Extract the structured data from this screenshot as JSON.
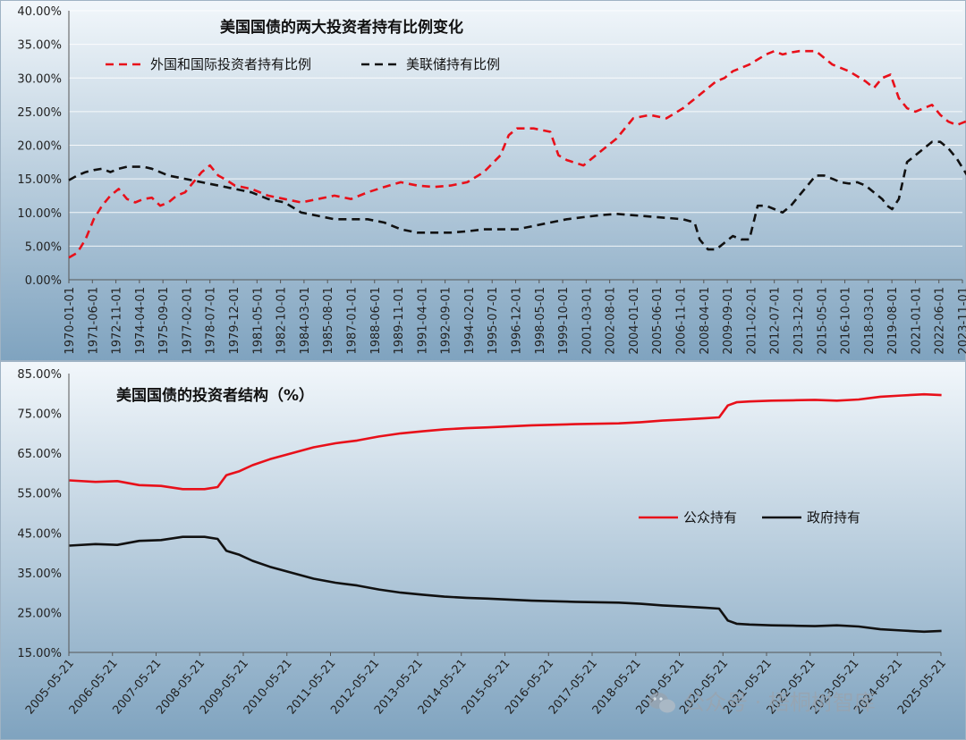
{
  "watermark": {
    "text": "公众号 · 梧桐树智库",
    "icon": "wechat-icon"
  },
  "chart_data": [
    {
      "type": "line",
      "title": "美国国债的两大投资者持有比例变化",
      "ylim": [
        0,
        0.4
      ],
      "y_ticks": [
        "0.00%",
        "5.00%",
        "10.00%",
        "15.00%",
        "20.00%",
        "25.00%",
        "30.00%",
        "35.00%",
        "40.00%"
      ],
      "x_ticks": [
        "1970-01-01",
        "1971-06-01",
        "1972-11-01",
        "1974-04-01",
        "1975-09-01",
        "1977-02-01",
        "1978-07-01",
        "1979-12-01",
        "1981-05-01",
        "1982-10-01",
        "1984-03-01",
        "1985-08-01",
        "1987-01-01",
        "1988-06-01",
        "1989-11-01",
        "1991-04-01",
        "1992-09-01",
        "1994-02-01",
        "1995-07-01",
        "1996-12-01",
        "1998-05-01",
        "1999-10-01",
        "2001-03-01",
        "2002-08-01",
        "2004-01-01",
        "2005-06-01",
        "2006-11-01",
        "2008-04-01",
        "2009-09-01",
        "2011-02-01",
        "2012-07-01",
        "2013-12-01",
        "2015-05-01",
        "2016-10-01",
        "2018-03-01",
        "2019-08-01",
        "2021-01-01",
        "2022-06-01",
        "2023-11-01"
      ],
      "grid": true,
      "legend_position": "top-left",
      "series": [
        {
          "name": "外国和国际投资者持有比例",
          "color": "#e8101a",
          "style": "dashed",
          "x": [
            1970.0,
            1970.5,
            1971.0,
            1971.5,
            1972.0,
            1972.5,
            1973.0,
            1973.5,
            1974.0,
            1974.5,
            1975.0,
            1975.5,
            1976.0,
            1976.5,
            1977.0,
            1977.5,
            1978.0,
            1978.5,
            1979.0,
            1979.5,
            1980.0,
            1981.0,
            1982.0,
            1983.0,
            1984.0,
            1985.0,
            1986.0,
            1987.0,
            1988.0,
            1989.0,
            1990.0,
            1991.0,
            1992.0,
            1993.0,
            1994.0,
            1995.0,
            1996.0,
            1996.5,
            1997.0,
            1998.0,
            1999.0,
            1999.5,
            2000.0,
            2001.0,
            2002.0,
            2003.0,
            2004.0,
            2005.0,
            2006.0,
            2007.0,
            2008.0,
            2009.0,
            2009.5,
            2010.0,
            2011.0,
            2012.0,
            2012.5,
            2013.0,
            2013.5,
            2014.0,
            2015.0,
            2015.5,
            2016.0,
            2017.0,
            2018.0,
            2018.5,
            2019.0,
            2019.5,
            2020.0,
            2020.5,
            2021.0,
            2022.0,
            2022.5,
            2023.0,
            2023.5,
            2024.0,
            2024.5
          ],
          "values": [
            0.033,
            0.04,
            0.06,
            0.09,
            0.11,
            0.125,
            0.135,
            0.12,
            0.115,
            0.12,
            0.122,
            0.11,
            0.115,
            0.125,
            0.13,
            0.145,
            0.16,
            0.17,
            0.155,
            0.148,
            0.14,
            0.135,
            0.125,
            0.12,
            0.115,
            0.12,
            0.125,
            0.12,
            0.13,
            0.138,
            0.145,
            0.14,
            0.138,
            0.14,
            0.145,
            0.16,
            0.185,
            0.215,
            0.225,
            0.225,
            0.22,
            0.185,
            0.178,
            0.17,
            0.19,
            0.21,
            0.24,
            0.245,
            0.24,
            0.255,
            0.275,
            0.295,
            0.3,
            0.31,
            0.32,
            0.335,
            0.34,
            0.335,
            0.338,
            0.34,
            0.34,
            0.33,
            0.32,
            0.31,
            0.295,
            0.285,
            0.3,
            0.305,
            0.27,
            0.255,
            0.25,
            0.26,
            0.245,
            0.235,
            0.23,
            0.235,
            0.24
          ]
        },
        {
          "name": "美联储持有比例",
          "color": "#111111",
          "style": "dashed",
          "x": [
            1970.0,
            1970.5,
            1971.0,
            1971.5,
            1972.0,
            1972.5,
            1973.0,
            1973.5,
            1974.0,
            1974.5,
            1975.0,
            1976.0,
            1977.0,
            1978.0,
            1979.0,
            1980.0,
            1981.0,
            1982.0,
            1983.0,
            1984.0,
            1985.0,
            1986.0,
            1987.0,
            1988.0,
            1989.0,
            1990.0,
            1991.0,
            1992.0,
            1993.0,
            1994.0,
            1995.0,
            1996.0,
            1997.0,
            1998.0,
            1999.0,
            2000.0,
            2001.0,
            2002.0,
            2003.0,
            2004.0,
            2005.0,
            2006.0,
            2007.0,
            2007.7,
            2008.0,
            2008.5,
            2009.0,
            2009.5,
            2010.0,
            2010.5,
            2011.0,
            2011.5,
            2012.0,
            2012.5,
            2013.0,
            2013.5,
            2014.0,
            2014.5,
            2015.0,
            2015.5,
            2016.0,
            2016.5,
            2017.0,
            2017.5,
            2018.0,
            2018.5,
            2019.0,
            2019.3,
            2019.6,
            2020.0,
            2020.5,
            2021.0,
            2021.5,
            2022.0,
            2022.5,
            2023.0,
            2023.5,
            2024.0,
            2024.5
          ],
          "values": [
            0.148,
            0.155,
            0.16,
            0.163,
            0.165,
            0.16,
            0.165,
            0.168,
            0.168,
            0.168,
            0.165,
            0.155,
            0.15,
            0.145,
            0.14,
            0.135,
            0.13,
            0.12,
            0.115,
            0.1,
            0.095,
            0.09,
            0.09,
            0.09,
            0.085,
            0.075,
            0.07,
            0.07,
            0.07,
            0.072,
            0.075,
            0.075,
            0.075,
            0.08,
            0.085,
            0.09,
            0.093,
            0.096,
            0.098,
            0.096,
            0.094,
            0.092,
            0.09,
            0.085,
            0.06,
            0.045,
            0.045,
            0.055,
            0.065,
            0.06,
            0.06,
            0.11,
            0.11,
            0.105,
            0.1,
            0.11,
            0.125,
            0.14,
            0.155,
            0.155,
            0.15,
            0.145,
            0.143,
            0.145,
            0.14,
            0.13,
            0.12,
            0.11,
            0.105,
            0.12,
            0.175,
            0.185,
            0.195,
            0.205,
            0.205,
            0.195,
            0.18,
            0.16,
            0.14
          ]
        }
      ]
    },
    {
      "type": "line",
      "title": "美国国债的投资者结构（%）",
      "ylim": [
        15,
        85
      ],
      "y_ticks": [
        "15.00%",
        "25.00%",
        "35.00%",
        "45.00%",
        "55.00%",
        "65.00%",
        "75.00%",
        "85.00%"
      ],
      "x_ticks": [
        "2005-05-21",
        "2006-05-21",
        "2007-05-21",
        "2008-05-21",
        "2009-05-21",
        "2010-05-21",
        "2011-05-21",
        "2012-05-21",
        "2013-05-21",
        "2014-05-21",
        "2015-05-21",
        "2016-05-21",
        "2017-05-21",
        "2018-05-21",
        "2019-05-21",
        "2020-05-21",
        "2021-05-21",
        "2022-05-21",
        "2023-05-21",
        "2024-05-21",
        "2025-05-21"
      ],
      "grid": false,
      "legend_position": "center-right",
      "series": [
        {
          "name": "公众持有",
          "color": "#e8101a",
          "style": "solid",
          "x": [
            2005.4,
            2006.0,
            2006.5,
            2007.0,
            2007.5,
            2008.0,
            2008.5,
            2008.8,
            2009.0,
            2009.3,
            2009.6,
            2010.0,
            2010.5,
            2011.0,
            2011.5,
            2012.0,
            2012.5,
            2013.0,
            2013.5,
            2014.0,
            2014.5,
            2015.0,
            2016.0,
            2017.0,
            2018.0,
            2018.5,
            2019.0,
            2019.5,
            2020.0,
            2020.3,
            2020.5,
            2020.7,
            2021.0,
            2021.5,
            2022.0,
            2022.5,
            2023.0,
            2023.5,
            2024.0,
            2024.5,
            2025.0,
            2025.4
          ],
          "values": [
            58.2,
            57.8,
            58.0,
            57.0,
            56.8,
            56.0,
            56.0,
            56.5,
            59.5,
            60.5,
            62.0,
            63.5,
            65.0,
            66.5,
            67.5,
            68.2,
            69.2,
            70.0,
            70.5,
            71.0,
            71.3,
            71.5,
            72.0,
            72.3,
            72.5,
            72.8,
            73.2,
            73.5,
            73.8,
            74.0,
            77.0,
            77.8,
            78.0,
            78.2,
            78.3,
            78.4,
            78.2,
            78.5,
            79.2,
            79.5,
            79.8,
            79.6
          ]
        },
        {
          "name": "政府持有",
          "color": "#111111",
          "style": "solid",
          "x": [
            2005.4,
            2006.0,
            2006.5,
            2007.0,
            2007.5,
            2008.0,
            2008.5,
            2008.8,
            2009.0,
            2009.3,
            2009.6,
            2010.0,
            2010.5,
            2011.0,
            2011.5,
            2012.0,
            2012.5,
            2013.0,
            2013.5,
            2014.0,
            2014.5,
            2015.0,
            2016.0,
            2017.0,
            2018.0,
            2018.5,
            2019.0,
            2019.5,
            2020.0,
            2020.3,
            2020.5,
            2020.7,
            2021.0,
            2021.5,
            2022.0,
            2022.5,
            2023.0,
            2023.5,
            2024.0,
            2024.5,
            2025.0,
            2025.4
          ],
          "values": [
            41.8,
            42.2,
            42.0,
            43.0,
            43.2,
            44.0,
            44.0,
            43.5,
            40.5,
            39.5,
            38.0,
            36.5,
            35.0,
            33.5,
            32.5,
            31.8,
            30.8,
            30.0,
            29.5,
            29.0,
            28.7,
            28.5,
            28.0,
            27.7,
            27.5,
            27.2,
            26.8,
            26.5,
            26.2,
            26.0,
            23.0,
            22.2,
            22.0,
            21.8,
            21.7,
            21.6,
            21.8,
            21.5,
            20.8,
            20.5,
            20.2,
            20.4
          ]
        }
      ]
    }
  ]
}
